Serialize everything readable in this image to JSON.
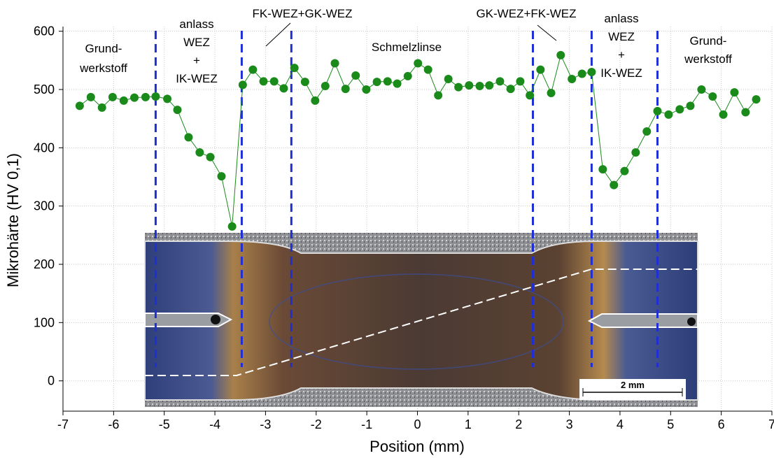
{
  "chart_data": {
    "type": "line",
    "xlabel": "Position (mm)",
    "ylabel": "Mikrohärte (HV 0,1)",
    "xlim": [
      -7,
      7
    ],
    "ylim": [
      -52,
      608
    ],
    "xticks": [
      -7,
      -6,
      -5,
      -4,
      -3,
      -2,
      -1,
      0,
      1,
      2,
      3,
      4,
      5,
      6,
      7
    ],
    "yticks": [
      0,
      100,
      200,
      300,
      400,
      500,
      600
    ],
    "grid": true,
    "series": [
      {
        "color": "#1a8a1a",
        "x": [
          -6.67,
          -6.45,
          -6.23,
          -6.02,
          -5.8,
          -5.59,
          -5.37,
          -5.17,
          -4.94,
          -4.74,
          -4.52,
          -4.3,
          -4.09,
          -3.87,
          -3.66,
          -3.45,
          -3.25,
          -3.04,
          -2.83,
          -2.64,
          -2.43,
          -2.22,
          -2.02,
          -1.82,
          -1.63,
          -1.42,
          -1.22,
          -1.01,
          -0.8,
          -0.59,
          -0.4,
          -0.19,
          0.01,
          0.21,
          0.41,
          0.61,
          0.81,
          1.02,
          1.23,
          1.42,
          1.63,
          1.84,
          2.03,
          2.22,
          2.43,
          2.64,
          2.83,
          3.05,
          3.25,
          3.44,
          3.66,
          3.88,
          4.09,
          4.31,
          4.53,
          4.74,
          4.96,
          5.18,
          5.39,
          5.61,
          5.83,
          6.04,
          6.26,
          6.48,
          6.69
        ],
        "values": [
          472,
          487,
          469,
          487,
          481,
          486,
          487,
          488,
          484,
          465,
          418,
          392,
          384,
          351,
          265,
          508,
          534,
          514,
          514,
          502,
          537,
          513,
          481,
          506,
          545,
          501,
          524,
          500,
          513,
          514,
          510,
          523,
          545,
          534,
          490,
          518,
          504,
          507,
          506,
          507,
          514,
          501,
          514,
          490,
          534,
          494,
          559,
          518,
          527,
          530,
          363,
          336,
          360,
          392,
          428,
          463,
          457,
          466,
          472,
          500,
          488,
          457,
          495,
          461,
          483
        ]
      }
    ],
    "vlines": {
      "color": "#1f2fd6",
      "x": [
        -5.17,
        -3.47,
        -2.49,
        2.28,
        3.44,
        4.74
      ]
    },
    "annotations": [
      {
        "lines": [
          "Grund-",
          "werkstoff"
        ]
      },
      {
        "lines": [
          "anlass",
          "WEZ",
          "+",
          "IK-WEZ"
        ]
      },
      {
        "lines": [
          "FK-WEZ+GK-WEZ"
        ]
      },
      {
        "lines": [
          "Schmelzlinse"
        ]
      },
      {
        "lines": [
          "GK-WEZ+FK-WEZ"
        ]
      },
      {
        "lines": [
          "anlass",
          "WEZ",
          "+",
          "IK-WEZ"
        ]
      },
      {
        "lines": [
          "Grund-",
          "werkstoff"
        ]
      }
    ],
    "scale_bar": "2 mm"
  }
}
